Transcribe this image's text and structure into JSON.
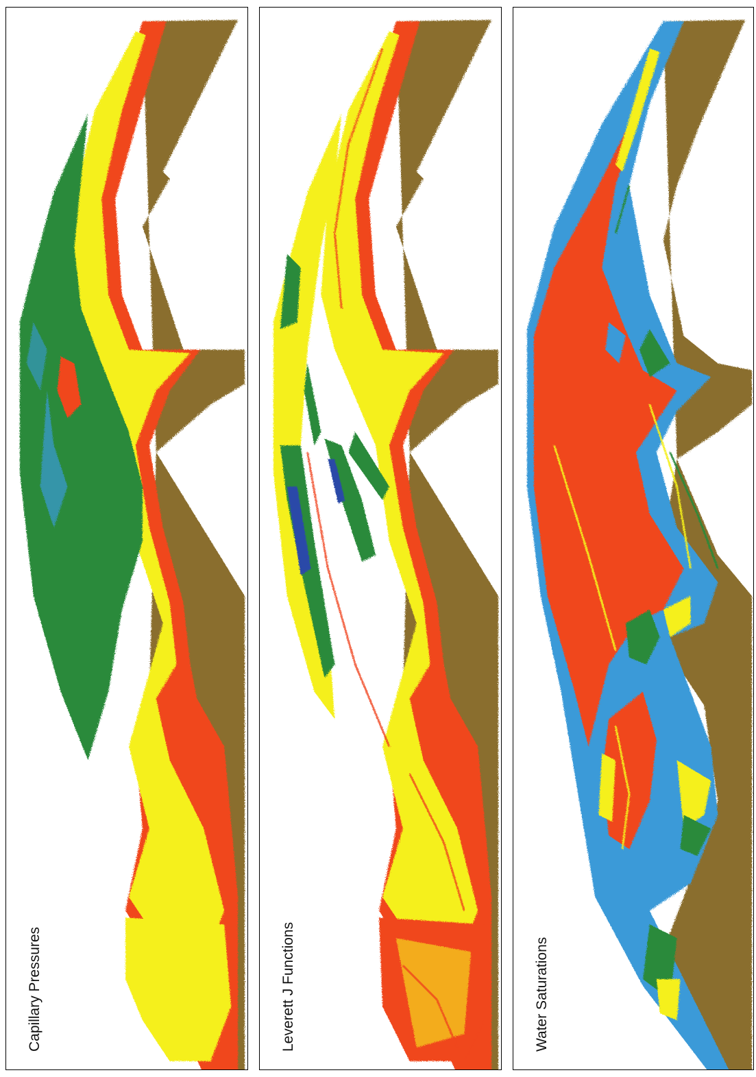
{
  "panels": [
    {
      "label": "Capillary Pressures"
    },
    {
      "label": "Leverett J Functions"
    },
    {
      "label": "Water Saturations"
    }
  ],
  "colors": {
    "brown": "#8a6e2e",
    "red": "#f0461e",
    "yellow": "#f5f01e",
    "green": "#2a8a3a",
    "blue": "#3a9ad8",
    "deep_blue": "#2a4aa8"
  }
}
